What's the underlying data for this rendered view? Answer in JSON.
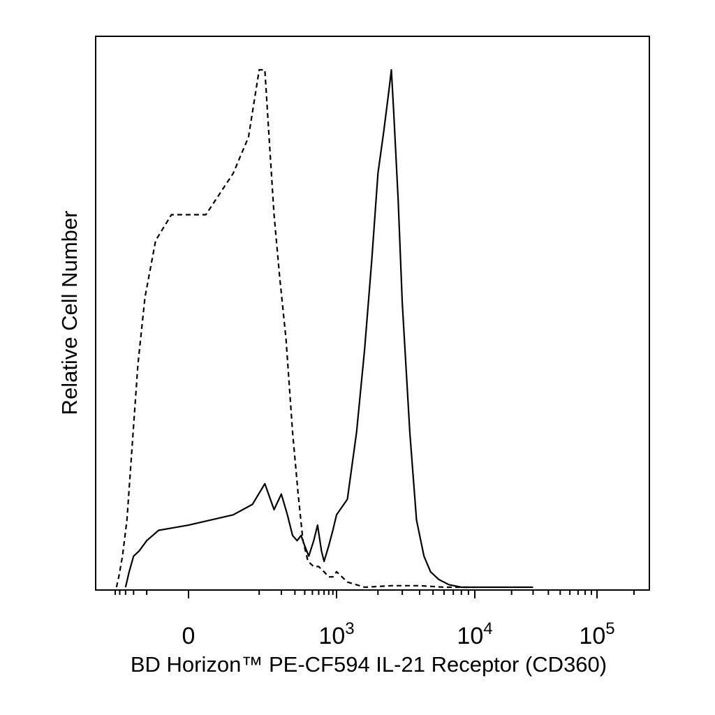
{
  "chart_data": {
    "type": "line",
    "title": "",
    "xlabel": "BD Horizon™ PE-CF594 IL-21 Receptor (CD360)",
    "ylabel": "Relative Cell Number",
    "x_scale": "biexponential",
    "x_range": [
      -500,
      250000
    ],
    "y_range": [
      0,
      100
    ],
    "grid": false,
    "x_ticks": [
      {
        "value": 0,
        "base": "0",
        "exp": ""
      },
      {
        "value": 1000,
        "base": "10",
        "exp": "3"
      },
      {
        "value": 10000,
        "base": "10",
        "exp": "4"
      },
      {
        "value": 100000,
        "base": "10",
        "exp": "5"
      }
    ],
    "series": [
      {
        "style": "dashed",
        "x": [
          -470,
          -420,
          -350,
          -280,
          -220,
          -160,
          -110,
          -60,
          -20,
          10,
          40,
          70,
          100,
          120,
          140,
          160,
          190,
          230,
          280,
          330,
          380,
          440,
          520,
          600,
          700,
          800,
          900,
          1000,
          1200,
          1600,
          2500,
          4000,
          6000,
          10000
        ],
        "y": [
          0,
          2,
          6,
          13,
          26,
          43,
          56,
          67,
          72,
          72,
          80,
          87,
          100,
          100,
          85,
          72,
          60,
          48,
          30,
          18,
          9,
          5,
          4,
          4,
          3,
          2,
          2,
          3,
          1,
          0,
          0.3,
          0.3,
          0,
          0
        ]
      },
      {
        "style": "solid",
        "x": [
          -300,
          -250,
          -200,
          -150,
          -100,
          -50,
          0,
          40,
          80,
          120,
          160,
          200,
          240,
          280,
          320,
          360,
          400,
          450,
          520,
          580,
          650,
          700,
          800,
          900,
          1000,
          1200,
          1400,
          1600,
          1800,
          2000,
          2200,
          2400,
          2500,
          2600,
          2800,
          3000,
          3400,
          3800,
          4300,
          4800,
          5500,
          6500,
          8000,
          12000,
          30000
        ],
        "y": [
          0,
          3,
          6,
          7,
          9,
          11,
          12,
          14,
          16,
          20,
          15,
          18,
          14,
          10,
          9,
          10,
          8,
          6,
          9,
          12,
          7,
          5,
          8,
          11,
          14,
          17,
          30,
          46,
          63,
          80,
          88,
          96,
          100,
          92,
          75,
          55,
          30,
          13,
          6,
          3,
          1.5,
          0.5,
          0,
          0,
          0
        ]
      }
    ]
  }
}
